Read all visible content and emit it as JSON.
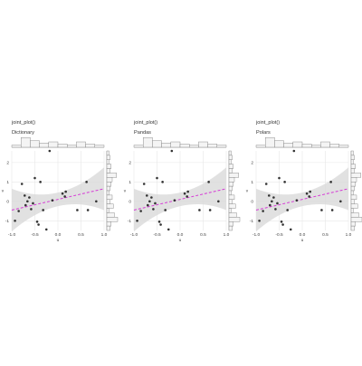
{
  "chart_data": [
    {
      "type": "scatter",
      "title": "joint_plot()",
      "subtitle": "Dictionary",
      "xlabel": "u",
      "ylabel": "v",
      "xlim": [
        -1.0,
        1.0
      ],
      "ylim": [
        -1.5,
        2.6
      ],
      "xticks": [
        "-1.0",
        "-0.5",
        "0.0",
        "0.5",
        "1.0"
      ],
      "yticks": [
        "2",
        "1",
        "0",
        "-1"
      ],
      "x": [
        -0.93,
        -0.85,
        -0.78,
        -0.72,
        -0.7,
        -0.66,
        -0.62,
        -0.58,
        -0.54,
        -0.5,
        -0.45,
        -0.42,
        -0.38,
        -0.32,
        -0.25,
        -0.18,
        -0.12,
        0.1,
        0.15,
        0.17,
        0.42,
        0.62,
        0.65,
        0.83
      ],
      "y": [
        -1.0,
        -0.5,
        0.9,
        0.3,
        -0.2,
        0.0,
        0.2,
        -0.4,
        -0.1,
        1.2,
        -1.05,
        -1.2,
        1.0,
        -0.45,
        -1.45,
        2.9,
        0.05,
        0.4,
        0.25,
        0.5,
        -0.45,
        1.0,
        -0.45,
        0.0
      ],
      "trend": {
        "slope": 0.55,
        "intercept": 0.1
      },
      "top_hist": [
        0.2,
        0.9,
        0.6,
        0.4,
        0.5,
        0.3,
        0.2,
        0.5,
        0.3,
        0.2
      ],
      "right_hist": [
        0.2,
        0.3,
        0.2,
        0.4,
        0.3,
        0.9,
        0.5,
        0.4,
        0.3,
        0.2,
        0.5,
        0.3,
        0.6,
        0.2,
        0.7,
        1.0,
        0.4,
        0.3
      ],
      "grid": true,
      "colors": {
        "points": "#333333",
        "trend": "#d63ad6",
        "band": "#d9d9d9"
      }
    },
    {
      "type": "scatter",
      "title": "joint_plot()",
      "subtitle": "Pandas",
      "xlabel": "u",
      "ylabel": "v",
      "xlim": [
        -1.0,
        1.0
      ],
      "ylim": [
        -1.5,
        2.6
      ],
      "xticks": [
        "-1.0",
        "-0.5",
        "0.0",
        "0.5",
        "1.0"
      ],
      "yticks": [
        "2",
        "1",
        "0",
        "-1"
      ],
      "x": [
        -0.93,
        -0.85,
        -0.78,
        -0.72,
        -0.7,
        -0.66,
        -0.62,
        -0.58,
        -0.54,
        -0.5,
        -0.45,
        -0.42,
        -0.38,
        -0.32,
        -0.25,
        -0.18,
        -0.12,
        0.1,
        0.15,
        0.17,
        0.42,
        0.62,
        0.65,
        0.83
      ],
      "y": [
        -1.0,
        -0.5,
        0.9,
        0.3,
        -0.2,
        0.0,
        0.2,
        -0.4,
        -0.1,
        1.2,
        -1.05,
        -1.2,
        1.0,
        -0.45,
        -1.45,
        2.9,
        0.05,
        0.4,
        0.25,
        0.5,
        -0.45,
        1.0,
        -0.45,
        0.0
      ],
      "trend": {
        "slope": 0.55,
        "intercept": 0.1
      },
      "top_hist": [
        0.2,
        0.9,
        0.6,
        0.4,
        0.5,
        0.3,
        0.2,
        0.5,
        0.3,
        0.2
      ],
      "right_hist": [
        0.2,
        0.3,
        0.2,
        0.4,
        0.3,
        0.9,
        0.5,
        0.4,
        0.3,
        0.2,
        0.5,
        0.3,
        0.6,
        0.2,
        0.7,
        1.0,
        0.4,
        0.3
      ],
      "grid": true,
      "colors": {
        "points": "#333333",
        "trend": "#d63ad6",
        "band": "#d9d9d9"
      }
    },
    {
      "type": "scatter",
      "title": "joint_plot()",
      "subtitle": "Polars",
      "xlabel": "u",
      "ylabel": "v",
      "xlim": [
        -1.0,
        1.0
      ],
      "ylim": [
        -1.5,
        2.6
      ],
      "xticks": [
        "-1.0",
        "-0.5",
        "0.0",
        "0.5",
        "1.0"
      ],
      "yticks": [
        "2",
        "1",
        "0",
        "-1"
      ],
      "x": [
        -0.93,
        -0.85,
        -0.78,
        -0.72,
        -0.7,
        -0.66,
        -0.62,
        -0.58,
        -0.54,
        -0.5,
        -0.45,
        -0.42,
        -0.38,
        -0.32,
        -0.25,
        -0.18,
        -0.12,
        0.1,
        0.15,
        0.17,
        0.42,
        0.62,
        0.65,
        0.83
      ],
      "y": [
        -1.0,
        -0.5,
        0.9,
        0.3,
        -0.2,
        0.0,
        0.2,
        -0.4,
        -0.1,
        1.2,
        -1.05,
        -1.2,
        1.0,
        -0.45,
        -1.45,
        2.9,
        0.05,
        0.4,
        0.25,
        0.5,
        -0.45,
        1.0,
        -0.45,
        0.0
      ],
      "trend": {
        "slope": 0.55,
        "intercept": 0.1
      },
      "top_hist": [
        0.2,
        0.9,
        0.6,
        0.4,
        0.5,
        0.3,
        0.2,
        0.5,
        0.3,
        0.2
      ],
      "right_hist": [
        0.2,
        0.3,
        0.2,
        0.4,
        0.3,
        0.9,
        0.5,
        0.4,
        0.3,
        0.2,
        0.5,
        0.3,
        0.6,
        0.2,
        0.7,
        1.0,
        0.4,
        0.3
      ],
      "grid": true,
      "colors": {
        "points": "#333333",
        "trend": "#d63ad6",
        "band": "#d9d9d9"
      }
    }
  ]
}
